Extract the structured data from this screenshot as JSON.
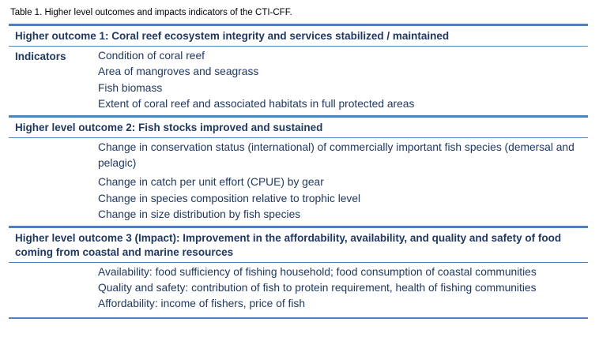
{
  "caption": "Table 1. Higher level outcomes and impacts indicators of the CTI-CFF.",
  "sections": [
    {
      "heading": "Higher outcome 1: Coral reef ecosystem integrity and services stabilized / maintained",
      "label": "Indicators",
      "items": [
        "Condition of coral reef",
        "Area of mangroves and seagrass",
        "Fish biomass",
        "Extent of coral reef and associated habitats in full protected areas"
      ]
    },
    {
      "heading": "Higher level outcome 2: Fish stocks improved and sustained",
      "items": [
        "Change in conservation status (international) of commercially important fish species (demersal and pelagic)",
        "Change in catch per unit effort (CPUE) by gear",
        "Change in species composition relative to trophic level",
        "Change in size distribution by fish species"
      ]
    },
    {
      "heading": "Higher level outcome 3 (Impact): Improvement in the affordability, availability, and quality and safety of food coming from coastal and marine resources",
      "items": [
        "Availability: food sufficiency of fishing household; food consumption of coastal communities",
        "Quality and safety: contribution of fish to protein requirement, health of fishing communities",
        "Affordability: income of fishers, price of fish"
      ]
    }
  ]
}
